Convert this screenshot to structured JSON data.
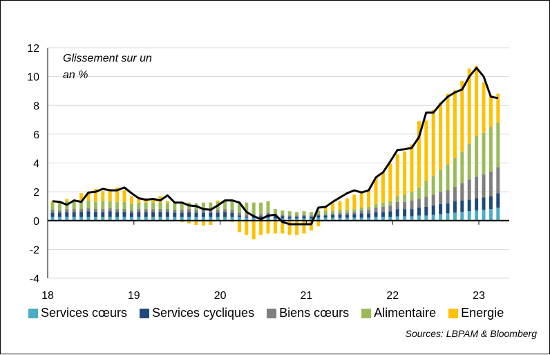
{
  "chart_data": {
    "type": "bar",
    "stacked": true,
    "annotation": "Glissement sur un an %",
    "source": "Sources: LBPAM & Bloomberg",
    "ylim": [
      -4,
      12
    ],
    "yticks": [
      "-4",
      "-2",
      "0",
      "2",
      "4",
      "6",
      "8",
      "10",
      "12"
    ],
    "xticks": [
      "18",
      "19",
      "20",
      "21",
      "22",
      "23"
    ],
    "grid": true,
    "legend_position": "bottom",
    "colors": {
      "Services cœurs": "#4BACC6",
      "Services cycliques": "#1F497D",
      "Biens cœurs": "#7F7F7F",
      "Alimentaire": "#9BBB59",
      "Energie": "#FFC000",
      "line": "#000000"
    },
    "categories": [
      "2018-01",
      "2018-02",
      "2018-03",
      "2018-04",
      "2018-05",
      "2018-06",
      "2018-07",
      "2018-08",
      "2018-09",
      "2018-10",
      "2018-11",
      "2018-12",
      "2019-01",
      "2019-02",
      "2019-03",
      "2019-04",
      "2019-05",
      "2019-06",
      "2019-07",
      "2019-08",
      "2019-09",
      "2019-10",
      "2019-11",
      "2019-12",
      "2020-01",
      "2020-02",
      "2020-03",
      "2020-04",
      "2020-05",
      "2020-06",
      "2020-07",
      "2020-08",
      "2020-09",
      "2020-10",
      "2020-11",
      "2020-12",
      "2021-01",
      "2021-02",
      "2021-03",
      "2021-04",
      "2021-05",
      "2021-06",
      "2021-07",
      "2021-08",
      "2021-09",
      "2021-10",
      "2021-11",
      "2021-12",
      "2022-01",
      "2022-02",
      "2022-03",
      "2022-04",
      "2022-05",
      "2022-06",
      "2022-07",
      "2022-08",
      "2022-09",
      "2022-10",
      "2022-11",
      "2022-12",
      "2023-01",
      "2023-02",
      "2023-03"
    ],
    "series": [
      {
        "name": "Services cœurs",
        "values": [
          0.25,
          0.25,
          0.25,
          0.25,
          0.25,
          0.25,
          0.25,
          0.25,
          0.25,
          0.25,
          0.25,
          0.25,
          0.25,
          0.25,
          0.25,
          0.25,
          0.25,
          0.25,
          0.25,
          0.25,
          0.25,
          0.25,
          0.25,
          0.25,
          0.25,
          0.25,
          0.25,
          0.2,
          0.2,
          0.2,
          0.2,
          0.15,
          0.15,
          0.15,
          0.15,
          0.15,
          0.15,
          0.2,
          0.2,
          0.2,
          0.2,
          0.2,
          0.2,
          0.2,
          0.2,
          0.25,
          0.25,
          0.25,
          0.3,
          0.3,
          0.3,
          0.35,
          0.35,
          0.4,
          0.45,
          0.5,
          0.55,
          0.6,
          0.65,
          0.7,
          0.75,
          0.8,
          0.9
        ]
      },
      {
        "name": "Services cycliques",
        "values": [
          0.3,
          0.3,
          0.35,
          0.35,
          0.35,
          0.4,
          0.35,
          0.35,
          0.4,
          0.35,
          0.35,
          0.3,
          0.35,
          0.35,
          0.35,
          0.35,
          0.35,
          0.3,
          0.3,
          0.35,
          0.3,
          0.3,
          0.3,
          0.3,
          0.35,
          0.3,
          0.1,
          0.05,
          0.05,
          0.1,
          0.2,
          0.2,
          0.15,
          0.1,
          0.1,
          0.15,
          0.1,
          0.15,
          0.15,
          0.2,
          0.2,
          0.2,
          0.25,
          0.3,
          0.3,
          0.35,
          0.35,
          0.4,
          0.5,
          0.5,
          0.5,
          0.55,
          0.6,
          0.65,
          0.7,
          0.7,
          0.8,
          0.8,
          0.8,
          0.85,
          0.85,
          0.9,
          1.0
        ]
      },
      {
        "name": "Biens cœurs",
        "values": [
          0.2,
          0.15,
          0.2,
          0.2,
          0.2,
          0.2,
          0.2,
          0.2,
          0.2,
          0.2,
          0.2,
          0.15,
          0.2,
          0.2,
          0.2,
          0.2,
          0.2,
          0.2,
          0.2,
          0.2,
          0.2,
          0.2,
          0.2,
          0.2,
          0.2,
          0.2,
          0.2,
          0.2,
          0.2,
          0.15,
          0.15,
          0.1,
          0.1,
          0.1,
          0.1,
          0.1,
          0.1,
          0.1,
          0.1,
          0.1,
          0.15,
          0.15,
          0.15,
          0.2,
          0.25,
          0.3,
          0.35,
          0.4,
          0.5,
          0.5,
          0.6,
          0.6,
          0.7,
          0.75,
          0.85,
          0.9,
          1.0,
          1.2,
          1.4,
          1.5,
          1.6,
          1.7,
          1.8
        ]
      },
      {
        "name": "Alimentaire",
        "values": [
          0.5,
          0.5,
          0.55,
          0.5,
          0.5,
          0.55,
          0.5,
          0.55,
          0.5,
          0.5,
          0.5,
          0.45,
          0.45,
          0.45,
          0.45,
          0.45,
          0.45,
          0.45,
          0.45,
          0.45,
          0.45,
          0.5,
          0.5,
          0.55,
          0.55,
          0.6,
          0.75,
          0.8,
          0.8,
          0.8,
          0.8,
          0.35,
          0.3,
          0.3,
          0.25,
          0.25,
          0.25,
          0.25,
          0.25,
          0.2,
          0.2,
          0.2,
          0.2,
          0.2,
          0.2,
          0.25,
          0.3,
          0.3,
          0.4,
          0.5,
          0.6,
          0.8,
          1.1,
          1.3,
          1.5,
          1.8,
          2.0,
          2.2,
          2.5,
          2.8,
          2.9,
          3.1,
          3.1
        ]
      },
      {
        "name": "Energie",
        "values": [
          0.1,
          0.1,
          0.15,
          0.1,
          0.6,
          0.6,
          0.9,
          0.7,
          0.8,
          1.0,
          0.8,
          0.55,
          0.25,
          0.3,
          0.3,
          0.45,
          0.1,
          0.1,
          -0.1,
          -0.2,
          -0.3,
          -0.35,
          -0.3,
          0.1,
          0.05,
          -0.1,
          -0.8,
          -1.0,
          -1.3,
          -1.0,
          -0.9,
          -0.9,
          -0.9,
          -1.0,
          -1.0,
          -0.9,
          -0.7,
          -0.4,
          0.2,
          0.5,
          0.6,
          0.8,
          1.0,
          1.0,
          1.2,
          1.8,
          2.1,
          2.6,
          2.9,
          3.0,
          3.3,
          4.6,
          4.2,
          4.6,
          4.7,
          4.9,
          4.7,
          4.9,
          5.2,
          4.9,
          3.5,
          2.2,
          2.0
        ]
      },
      {
        "name": "",
        "kind": "line",
        "values": [
          1.35,
          1.3,
          1.1,
          1.4,
          1.3,
          1.95,
          2.0,
          2.2,
          2.1,
          2.1,
          2.3,
          1.9,
          1.55,
          1.45,
          1.5,
          1.4,
          1.75,
          1.25,
          1.25,
          1.05,
          1.0,
          0.8,
          0.75,
          1.05,
          1.4,
          1.4,
          1.25,
          0.6,
          0.3,
          0.1,
          0.35,
          0.4,
          -0.1,
          -0.25,
          -0.25,
          -0.25,
          -0.25,
          0.9,
          0.95,
          1.3,
          1.6,
          1.9,
          2.1,
          1.95,
          2.1,
          3.0,
          3.35,
          4.1,
          4.9,
          4.95,
          5.05,
          5.8,
          7.5,
          7.5,
          8.1,
          8.6,
          8.9,
          9.1,
          10.0,
          10.6,
          10.0,
          8.6,
          8.5
        ]
      }
    ]
  }
}
